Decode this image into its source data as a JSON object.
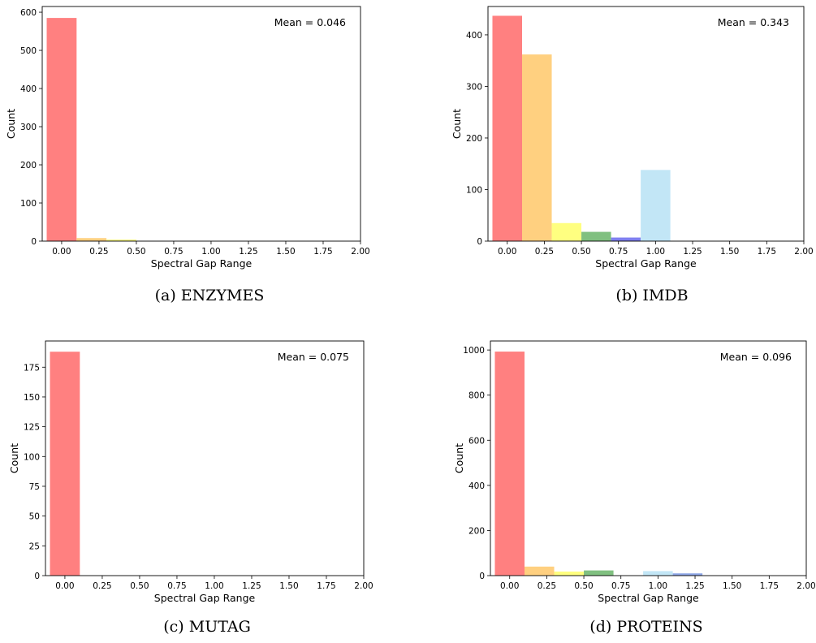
{
  "chart_data": [
    {
      "type": "bar",
      "caption": "(a) ENZYMES",
      "annotation": "Mean = 0.046",
      "xlabel": "Spectral Gap Range",
      "ylabel": "Count",
      "xlim": [
        -0.13,
        2.0
      ],
      "ylim": [
        0,
        615
      ],
      "xticks": [
        "0.00",
        "0.25",
        "0.50",
        "0.75",
        "1.00",
        "1.25",
        "1.50",
        "1.75",
        "2.00"
      ],
      "yticks": [
        0,
        100,
        200,
        300,
        400,
        500,
        600
      ],
      "bar_width": 0.2,
      "bars": [
        {
          "x": 0.0,
          "value": 585,
          "color": "#ff8080"
        },
        {
          "x": 0.2,
          "value": 8,
          "color": "#ffd080"
        },
        {
          "x": 0.4,
          "value": 4,
          "color": "#ffff80"
        }
      ]
    },
    {
      "type": "bar",
      "caption": "(b) IMDB",
      "annotation": "Mean = 0.343",
      "xlabel": "Spectral Gap Range",
      "ylabel": "Count",
      "xlim": [
        -0.13,
        2.0
      ],
      "ylim": [
        0,
        455
      ],
      "xticks": [
        "0.00",
        "0.25",
        "0.50",
        "0.75",
        "1.00",
        "1.25",
        "1.50",
        "1.75",
        "2.00"
      ],
      "yticks": [
        0,
        100,
        200,
        300,
        400
      ],
      "bar_width": 0.2,
      "bars": [
        {
          "x": 0.0,
          "value": 437,
          "color": "#ff8080"
        },
        {
          "x": 0.2,
          "value": 362,
          "color": "#ffd080"
        },
        {
          "x": 0.4,
          "value": 35,
          "color": "#ffff80"
        },
        {
          "x": 0.6,
          "value": 18,
          "color": "#80c080"
        },
        {
          "x": 0.8,
          "value": 7,
          "color": "#7f7ff0"
        },
        {
          "x": 1.0,
          "value": 138,
          "color": "#c2e6f6"
        }
      ]
    },
    {
      "type": "bar",
      "caption": "(c) MUTAG",
      "annotation": "Mean = 0.075",
      "xlabel": "Spectral Gap Range",
      "ylabel": "Count",
      "xlim": [
        -0.13,
        2.0
      ],
      "ylim": [
        0,
        197
      ],
      "xticks": [
        "0.00",
        "0.25",
        "0.50",
        "0.75",
        "1.00",
        "1.25",
        "1.50",
        "1.75",
        "2.00"
      ],
      "yticks": [
        0,
        25,
        50,
        75,
        100,
        125,
        150,
        175
      ],
      "bar_width": 0.2,
      "bars": [
        {
          "x": 0.0,
          "value": 188,
          "color": "#ff8080"
        }
      ]
    },
    {
      "type": "bar",
      "caption": "(d) PROTEINS",
      "annotation": "Mean = 0.096",
      "xlabel": "Spectral Gap Range",
      "ylabel": "Count",
      "xlim": [
        -0.13,
        2.0
      ],
      "ylim": [
        0,
        1040
      ],
      "xticks": [
        "0.00",
        "0.25",
        "0.50",
        "0.75",
        "1.00",
        "1.25",
        "1.50",
        "1.75",
        "2.00"
      ],
      "yticks": [
        0,
        200,
        400,
        600,
        800,
        1000
      ],
      "bar_width": 0.2,
      "bars": [
        {
          "x": 0.0,
          "value": 993,
          "color": "#ff8080"
        },
        {
          "x": 0.2,
          "value": 40,
          "color": "#ffd080"
        },
        {
          "x": 0.4,
          "value": 18,
          "color": "#ffff80"
        },
        {
          "x": 0.6,
          "value": 23,
          "color": "#80c080"
        },
        {
          "x": 1.0,
          "value": 20,
          "color": "#c2e6f6"
        },
        {
          "x": 1.2,
          "value": 10,
          "color": "#8ea6e6"
        }
      ]
    }
  ]
}
